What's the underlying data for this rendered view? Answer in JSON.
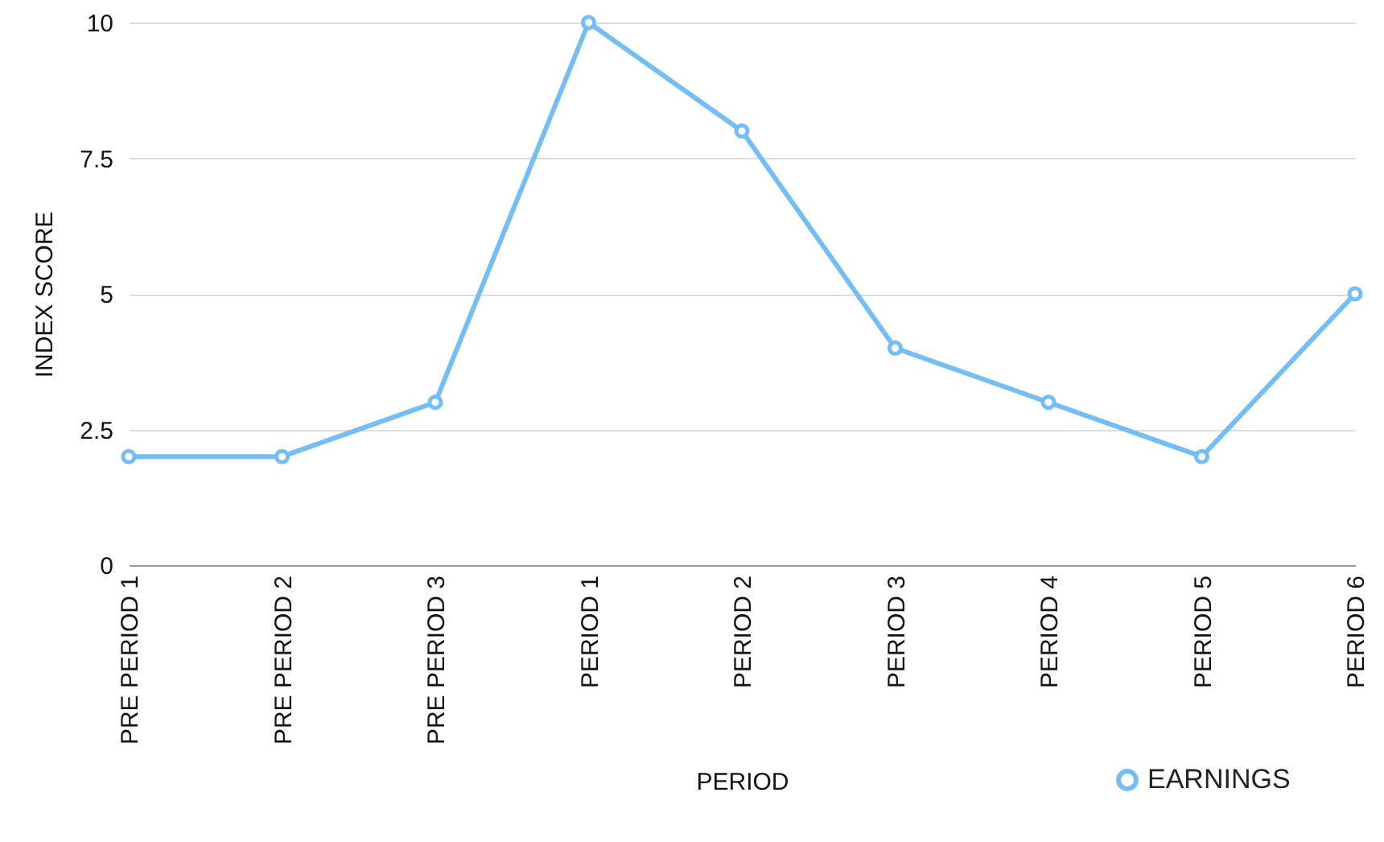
{
  "chart_data": {
    "type": "line",
    "xlabel": "PERIOD",
    "ylabel": "INDEX SCORE",
    "categories": [
      "PRE PERIOD 1",
      "PRE PERIOD 2",
      "PRE PERIOD 3",
      "PERIOD 1",
      "PERIOD 2",
      "PERIOD 3",
      "PERIOD 4",
      "PERIOD 5",
      "PERIOD 6"
    ],
    "series": [
      {
        "name": "EARNINGS",
        "color": "#74bdf5",
        "values": [
          2,
          2,
          3,
          10,
          8,
          4,
          3,
          2,
          5
        ]
      }
    ],
    "ylim": [
      0,
      10
    ],
    "yticks": [
      0,
      2.5,
      5,
      7.5,
      10
    ],
    "grid": "y",
    "legend": "bottom right",
    "marker": "circle",
    "line_style": "solid"
  }
}
